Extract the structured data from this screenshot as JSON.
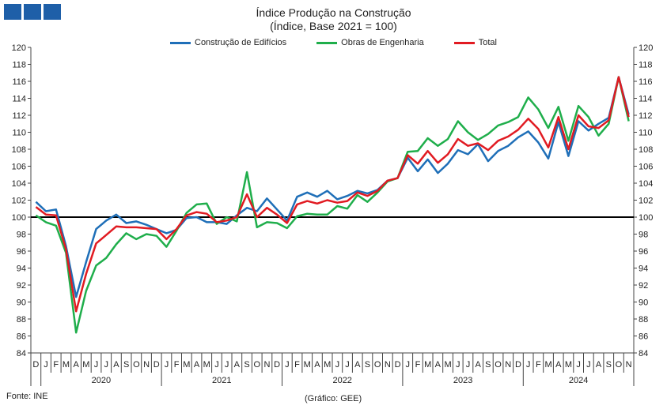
{
  "header": {
    "title": "Índice Produção na Construção",
    "subtitle": "(Índice, Base 2021 = 100)"
  },
  "footer": {
    "source": "Fonte: INE",
    "credit": "(Gráfico: GEE)"
  },
  "colors": {
    "logo": "#1e5fa8",
    "baseline": "#000000"
  },
  "chart_data": {
    "type": "line",
    "title": "Índice Produção na Construção",
    "subtitle": "(Índice, Base 2021 = 100)",
    "ylim": [
      84,
      120
    ],
    "y_ticks": [
      84,
      86,
      88,
      90,
      92,
      94,
      96,
      98,
      100,
      102,
      104,
      106,
      108,
      110,
      112,
      114,
      116,
      118,
      120
    ],
    "y_axis_both_sides": true,
    "reference_line": 100,
    "grid": false,
    "legend_position": "top-center",
    "x_month_labels": [
      "D",
      "J",
      "F",
      "M",
      "A",
      "M",
      "J",
      "J",
      "A",
      "S",
      "O",
      "N",
      "D",
      "J",
      "F",
      "M",
      "A",
      "M",
      "J",
      "J",
      "A",
      "S",
      "O",
      "N",
      "D",
      "J",
      "F",
      "M",
      "A",
      "M",
      "J",
      "J",
      "A",
      "S",
      "O",
      "N",
      "D",
      "J",
      "F",
      "M",
      "A",
      "M",
      "J",
      "J",
      "A",
      "S",
      "O",
      "N",
      "D",
      "J",
      "F",
      "M",
      "A",
      "M",
      "J",
      "J",
      "A",
      "S",
      "O",
      "N"
    ],
    "x_year_labels": [
      {
        "label": "2020",
        "from": 1,
        "to": 12
      },
      {
        "label": "2021",
        "from": 13,
        "to": 24
      },
      {
        "label": "2022",
        "from": 25,
        "to": 36
      },
      {
        "label": "2023",
        "from": 37,
        "to": 48
      },
      {
        "label": "2024",
        "from": 49,
        "to": 59
      }
    ],
    "series": [
      {
        "name": "Construção de Edifícios",
        "color": "#1f6fb8",
        "values": [
          101.8,
          100.7,
          100.9,
          96.6,
          90.6,
          94.7,
          98.6,
          99.6,
          100.3,
          99.3,
          99.5,
          99.1,
          98.6,
          98.1,
          98.5,
          99.9,
          100.0,
          99.4,
          99.4,
          99.2,
          100.2,
          101.1,
          100.7,
          102.2,
          100.9,
          99.6,
          102.4,
          102.9,
          102.4,
          103.1,
          102.1,
          102.5,
          103.1,
          102.8,
          103.2,
          104.3,
          104.6,
          107.0,
          105.4,
          106.8,
          105.2,
          106.3,
          107.9,
          107.4,
          108.6,
          106.6,
          107.8,
          108.4,
          109.4,
          110.1,
          108.8,
          106.9,
          111.2,
          107.2,
          111.3,
          110.2,
          111.0,
          111.7,
          116.5,
          112.1
        ]
      },
      {
        "name": "Obras de Engenharia",
        "color": "#1fae4b",
        "values": [
          100.2,
          99.4,
          99.0,
          95.8,
          86.4,
          91.3,
          94.3,
          95.2,
          96.8,
          98.1,
          97.4,
          98.0,
          97.8,
          96.5,
          98.4,
          100.5,
          101.5,
          101.6,
          99.2,
          100.0,
          99.5,
          105.3,
          98.8,
          99.4,
          99.3,
          98.7,
          100.1,
          100.4,
          100.3,
          100.3,
          101.3,
          101.0,
          102.6,
          101.8,
          102.9,
          104.2,
          104.6,
          107.7,
          107.8,
          109.3,
          108.4,
          109.2,
          111.3,
          110.0,
          109.1,
          109.8,
          110.8,
          111.2,
          111.8,
          114.1,
          112.7,
          110.5,
          113.0,
          109.0,
          113.1,
          111.8,
          109.6,
          111.0,
          116.5,
          111.3
        ]
      },
      {
        "name": "Total",
        "color": "#e11b22",
        "values": [
          101.2,
          100.3,
          100.2,
          96.2,
          88.9,
          93.3,
          96.9,
          97.9,
          98.9,
          98.8,
          98.8,
          98.7,
          98.6,
          97.4,
          98.6,
          100.2,
          100.6,
          100.4,
          99.4,
          99.6,
          100.0,
          102.7,
          100.0,
          101.1,
          100.3,
          99.3,
          101.5,
          101.9,
          101.6,
          102.0,
          101.7,
          101.9,
          102.9,
          102.5,
          103.1,
          104.3,
          104.6,
          107.3,
          106.3,
          107.8,
          106.4,
          107.4,
          109.2,
          108.4,
          108.7,
          107.9,
          109.0,
          109.5,
          110.3,
          111.6,
          110.4,
          108.2,
          111.8,
          108.0,
          112.0,
          110.7,
          110.5,
          111.4,
          116.5,
          111.8
        ]
      }
    ]
  }
}
